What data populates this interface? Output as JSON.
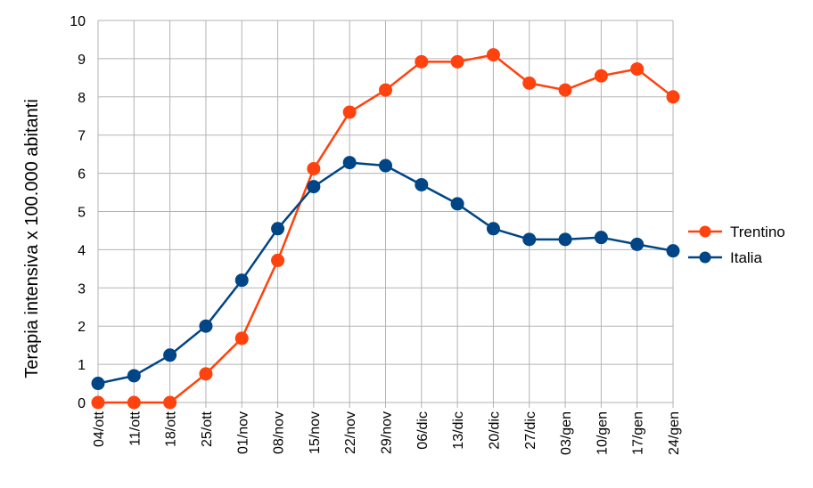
{
  "chart_data": {
    "type": "line",
    "title": "",
    "xlabel": "",
    "ylabel": "Terapia intensiva x 100.000 abitanti",
    "ylim": [
      0,
      10
    ],
    "yticks": [
      "0",
      "1",
      "2",
      "3",
      "4",
      "5",
      "6",
      "7",
      "8",
      "9",
      "10"
    ],
    "grid": "vertical and horizontal",
    "legend_position": "right",
    "categories": [
      "04/ott",
      "11/ott",
      "18/ott",
      "25/ott",
      "01/nov",
      "08/nov",
      "15/nov",
      "22/nov",
      "29/nov",
      "06/dic",
      "13/dic",
      "20/dic",
      "27/dic",
      "03/gen",
      "10/gen",
      "17/gen",
      "24/gen"
    ],
    "series": [
      {
        "name": "Trentino",
        "color": "#ff420e",
        "values": [
          0,
          0,
          0,
          0.75,
          1.68,
          3.72,
          6.12,
          7.6,
          8.18,
          8.92,
          8.92,
          9.1,
          8.36,
          8.18,
          8.55,
          8.73,
          8.0
        ]
      },
      {
        "name": "Italia",
        "color": "#004586",
        "values": [
          0.5,
          0.7,
          1.24,
          2.0,
          3.2,
          4.55,
          5.65,
          6.28,
          6.2,
          5.7,
          5.2,
          4.55,
          4.27,
          4.27,
          4.32,
          4.14,
          3.97
        ]
      }
    ]
  }
}
